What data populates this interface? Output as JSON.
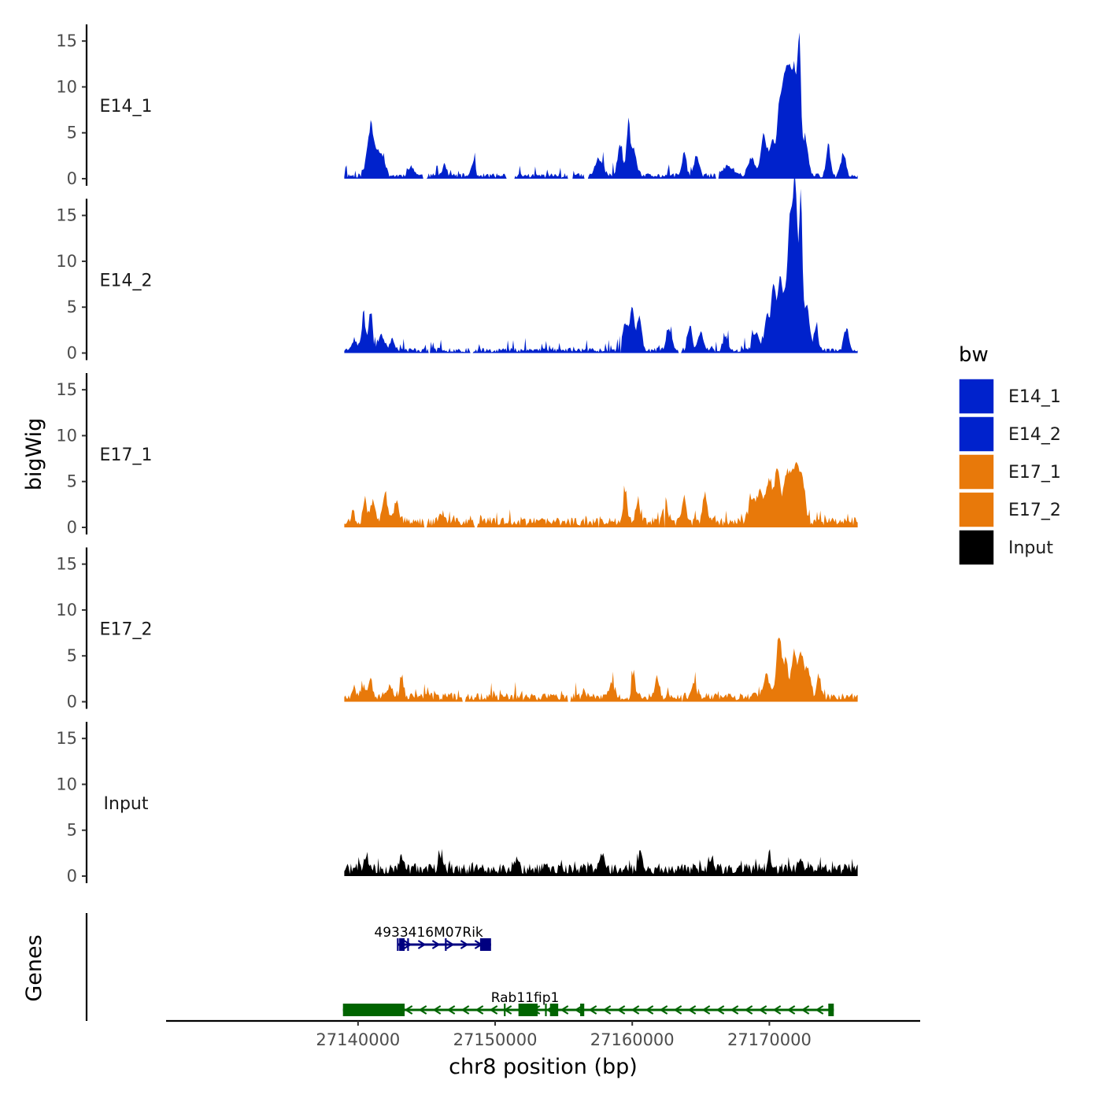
{
  "chart_data": {
    "type": "area",
    "ylabel": "bigWig",
    "ylim": [
      0,
      16
    ],
    "yticks": [
      0,
      5,
      10,
      15
    ],
    "x_range": [
      27139000,
      27176500
    ],
    "xlim": [
      27126000,
      27181000
    ],
    "xticks": [
      27140000,
      27150000,
      27160000,
      27170000
    ],
    "xtick_labels": [
      "27140000",
      "27150000",
      "27160000",
      "27170000"
    ],
    "xlabel": "chr8 position (bp)",
    "genes_label": "Genes",
    "legend": {
      "title": "bw",
      "entries": [
        {
          "label": "E14_1",
          "color": "#0022cc"
        },
        {
          "label": "E14_2",
          "color": "#0022cc"
        },
        {
          "label": "E17_1",
          "color": "#e8790a"
        },
        {
          "label": "E17_2",
          "color": "#e8790a"
        },
        {
          "label": "Input",
          "color": "#000000"
        }
      ]
    },
    "tracks": [
      {
        "name": "E14_1",
        "color": "#0022cc",
        "base": 0.3,
        "seed": 11,
        "gaps": [
          [
            27144700,
            27145000
          ],
          [
            27150800,
            27151400
          ],
          [
            27155300,
            27155700
          ],
          [
            27156500,
            27156800
          ],
          [
            27166100,
            27166300
          ]
        ],
        "peaks": [
          {
            "pos": 27140900,
            "h": 4.8,
            "w": 350
          },
          {
            "pos": 27141400,
            "h": 2.0,
            "w": 350
          },
          {
            "pos": 27141800,
            "h": 1.7,
            "w": 300
          },
          {
            "pos": 27143900,
            "h": 1.0,
            "w": 300
          },
          {
            "pos": 27146300,
            "h": 1.3,
            "w": 200
          },
          {
            "pos": 27148400,
            "h": 1.6,
            "w": 200
          },
          {
            "pos": 27157600,
            "h": 1.8,
            "w": 400
          },
          {
            "pos": 27159100,
            "h": 3.2,
            "w": 250
          },
          {
            "pos": 27159700,
            "h": 4.7,
            "w": 200
          },
          {
            "pos": 27160100,
            "h": 2.5,
            "w": 300
          },
          {
            "pos": 27163800,
            "h": 2.8,
            "w": 200
          },
          {
            "pos": 27164700,
            "h": 2.2,
            "w": 250
          },
          {
            "pos": 27167000,
            "h": 1.0,
            "w": 600
          },
          {
            "pos": 27168700,
            "h": 2.0,
            "w": 350
          },
          {
            "pos": 27169600,
            "h": 4.5,
            "w": 300
          },
          {
            "pos": 27170200,
            "h": 3.5,
            "w": 250
          },
          {
            "pos": 27170700,
            "h": 6.3,
            "w": 250
          },
          {
            "pos": 27171100,
            "h": 9.0,
            "w": 300
          },
          {
            "pos": 27171500,
            "h": 9.8,
            "w": 300
          },
          {
            "pos": 27171900,
            "h": 9.5,
            "w": 250
          },
          {
            "pos": 27172200,
            "h": 12.8,
            "w": 150
          },
          {
            "pos": 27172600,
            "h": 4.0,
            "w": 300
          },
          {
            "pos": 27174300,
            "h": 3.5,
            "w": 200
          },
          {
            "pos": 27175400,
            "h": 2.5,
            "w": 250
          }
        ]
      },
      {
        "name": "E14_2",
        "color": "#0022cc",
        "base": 0.3,
        "seed": 23,
        "gaps": [
          [
            27145100,
            27145300
          ],
          [
            27148200,
            27148400
          ],
          [
            27159100,
            27159200
          ],
          [
            27163400,
            27163600
          ]
        ],
        "peaks": [
          {
            "pos": 27139700,
            "h": 1.0,
            "w": 300
          },
          {
            "pos": 27140400,
            "h": 3.5,
            "w": 200
          },
          {
            "pos": 27140900,
            "h": 4.2,
            "w": 200
          },
          {
            "pos": 27141700,
            "h": 1.7,
            "w": 300
          },
          {
            "pos": 27142500,
            "h": 1.3,
            "w": 250
          },
          {
            "pos": 27159500,
            "h": 3.0,
            "w": 300
          },
          {
            "pos": 27160000,
            "h": 4.5,
            "w": 200
          },
          {
            "pos": 27160500,
            "h": 3.6,
            "w": 250
          },
          {
            "pos": 27162700,
            "h": 2.2,
            "w": 300
          },
          {
            "pos": 27164200,
            "h": 2.8,
            "w": 200
          },
          {
            "pos": 27165000,
            "h": 2.1,
            "w": 250
          },
          {
            "pos": 27166800,
            "h": 1.6,
            "w": 250
          },
          {
            "pos": 27169000,
            "h": 2.0,
            "w": 300
          },
          {
            "pos": 27169800,
            "h": 3.5,
            "w": 250
          },
          {
            "pos": 27170300,
            "h": 7.0,
            "w": 250
          },
          {
            "pos": 27170800,
            "h": 8.0,
            "w": 250
          },
          {
            "pos": 27171200,
            "h": 5.5,
            "w": 200
          },
          {
            "pos": 27171500,
            "h": 13.0,
            "w": 200
          },
          {
            "pos": 27171800,
            "h": 13.5,
            "w": 200
          },
          {
            "pos": 27172000,
            "h": 10.0,
            "w": 200
          },
          {
            "pos": 27172300,
            "h": 15.5,
            "w": 150
          },
          {
            "pos": 27172700,
            "h": 5.0,
            "w": 300
          },
          {
            "pos": 27173400,
            "h": 2.5,
            "w": 200
          },
          {
            "pos": 27175600,
            "h": 2.2,
            "w": 250
          }
        ]
      },
      {
        "name": "E17_1",
        "color": "#e8790a",
        "base": 0.55,
        "seed": 37,
        "gaps": [
          [
            27144800,
            27145000
          ],
          [
            27148500,
            27148700
          ],
          [
            27157500,
            27157600
          ],
          [
            27162300,
            27162400
          ]
        ],
        "peaks": [
          {
            "pos": 27139600,
            "h": 1.0,
            "w": 200
          },
          {
            "pos": 27140500,
            "h": 2.6,
            "w": 200
          },
          {
            "pos": 27141100,
            "h": 2.2,
            "w": 250
          },
          {
            "pos": 27142000,
            "h": 2.8,
            "w": 250
          },
          {
            "pos": 27142800,
            "h": 2.0,
            "w": 300
          },
          {
            "pos": 27146100,
            "h": 1.0,
            "w": 250
          },
          {
            "pos": 27159500,
            "h": 3.2,
            "w": 200
          },
          {
            "pos": 27160400,
            "h": 2.0,
            "w": 250
          },
          {
            "pos": 27162400,
            "h": 2.5,
            "w": 200
          },
          {
            "pos": 27163800,
            "h": 2.6,
            "w": 200
          },
          {
            "pos": 27165300,
            "h": 3.1,
            "w": 200
          },
          {
            "pos": 27168800,
            "h": 2.5,
            "w": 400
          },
          {
            "pos": 27169400,
            "h": 3.0,
            "w": 300
          },
          {
            "pos": 27170000,
            "h": 4.5,
            "w": 300
          },
          {
            "pos": 27170600,
            "h": 5.8,
            "w": 300
          },
          {
            "pos": 27171200,
            "h": 4.5,
            "w": 250
          },
          {
            "pos": 27171600,
            "h": 4.5,
            "w": 300
          },
          {
            "pos": 27172000,
            "h": 5.0,
            "w": 250
          },
          {
            "pos": 27172400,
            "h": 4.5,
            "w": 300
          }
        ]
      },
      {
        "name": "E17_2",
        "color": "#e8790a",
        "base": 0.5,
        "seed": 53,
        "gaps": [
          [
            27147600,
            27147800
          ],
          [
            27155300,
            27155500
          ],
          [
            27163600,
            27163700
          ]
        ],
        "peaks": [
          {
            "pos": 27139700,
            "h": 1.2,
            "w": 200
          },
          {
            "pos": 27140400,
            "h": 1.3,
            "w": 250
          },
          {
            "pos": 27140900,
            "h": 2.2,
            "w": 200
          },
          {
            "pos": 27142300,
            "h": 1.2,
            "w": 300
          },
          {
            "pos": 27143200,
            "h": 1.8,
            "w": 200
          },
          {
            "pos": 27158500,
            "h": 1.5,
            "w": 300
          },
          {
            "pos": 27160100,
            "h": 3.0,
            "w": 150
          },
          {
            "pos": 27161800,
            "h": 2.0,
            "w": 250
          },
          {
            "pos": 27164500,
            "h": 1.8,
            "w": 250
          },
          {
            "pos": 27169800,
            "h": 2.5,
            "w": 300
          },
          {
            "pos": 27170700,
            "h": 6.8,
            "w": 250
          },
          {
            "pos": 27171200,
            "h": 4.0,
            "w": 250
          },
          {
            "pos": 27171800,
            "h": 5.0,
            "w": 250
          },
          {
            "pos": 27172300,
            "h": 4.5,
            "w": 250
          },
          {
            "pos": 27172800,
            "h": 3.0,
            "w": 300
          },
          {
            "pos": 27173600,
            "h": 2.5,
            "w": 200
          }
        ]
      },
      {
        "name": "Input",
        "color": "#000000",
        "base": 0.7,
        "seed": 71,
        "gaps": [],
        "peaks": [
          {
            "pos": 27140600,
            "h": 1.5,
            "w": 200
          },
          {
            "pos": 27143200,
            "h": 1.2,
            "w": 250
          },
          {
            "pos": 27146000,
            "h": 1.6,
            "w": 200
          },
          {
            "pos": 27151500,
            "h": 1.1,
            "w": 250
          },
          {
            "pos": 27157800,
            "h": 1.5,
            "w": 200
          },
          {
            "pos": 27160600,
            "h": 1.6,
            "w": 200
          },
          {
            "pos": 27165700,
            "h": 1.2,
            "w": 200
          },
          {
            "pos": 27170000,
            "h": 1.8,
            "w": 150
          },
          {
            "pos": 27172300,
            "h": 1.2,
            "w": 200
          }
        ]
      }
    ],
    "genes": [
      {
        "name": "4933416M07Rik",
        "color": "#000080",
        "strand": "+",
        "row": 1,
        "start": 27142900,
        "end": 27149700,
        "exons": [
          [
            27143000,
            27143400
          ],
          [
            27148900,
            27149700
          ]
        ],
        "marks": [
          27142900,
          27143650,
          27146400
        ]
      },
      {
        "name": "Rab11fip1",
        "color": "#006400",
        "strand": "-",
        "row": 2,
        "start": 27138900,
        "end": 27174700,
        "exons": [
          [
            27138900,
            27143400
          ],
          [
            27151700,
            27153100
          ],
          [
            27154000,
            27154600
          ],
          [
            27156200,
            27156500
          ],
          [
            27174300,
            27174700
          ]
        ],
        "marks": [
          27150700,
          27153700
        ]
      }
    ]
  }
}
